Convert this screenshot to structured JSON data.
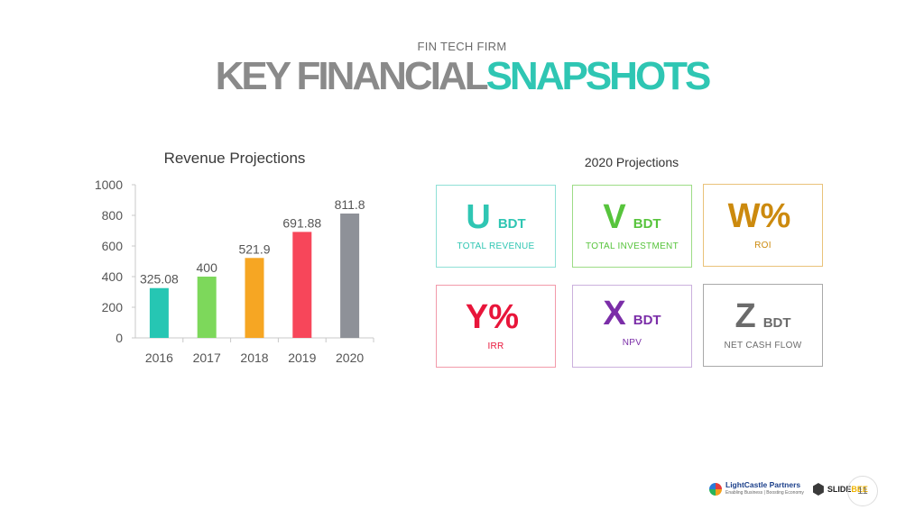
{
  "header": {
    "subtitle": "FIN TECH FIRM",
    "title_part1": "KEY FINANCIAL",
    "title_part2": "SNAPSHOTS"
  },
  "chart_data": {
    "type": "bar",
    "title": "Revenue Projections",
    "categories": [
      "2016",
      "2017",
      "2018",
      "2019",
      "2020"
    ],
    "values": [
      325.08,
      400,
      521.9,
      691.88,
      811.8
    ],
    "value_labels": [
      "325.08",
      "400",
      "521.9",
      "691.88",
      "811.8"
    ],
    "colors": [
      "#26c6b3",
      "#7dd85b",
      "#f6a623",
      "#f7465a",
      "#8e9198"
    ],
    "ylim": [
      0,
      1000
    ],
    "yticks": [
      0,
      200,
      400,
      600,
      800,
      1000
    ],
    "xlabel": "",
    "ylabel": "",
    "grid": false
  },
  "projections": {
    "title": "2020 Projections",
    "cards": [
      {
        "letter": "U",
        "unit": "BDT",
        "label": "TOTAL REVENUE",
        "color": "#2fc6b3",
        "border": "#8fe0d6"
      },
      {
        "letter": "V",
        "unit": "BDT",
        "label": "TOTAL INVESTMENT",
        "color": "#57c43c",
        "border": "#9ddc86"
      },
      {
        "letter": "W%",
        "unit": "",
        "label": "ROI",
        "color": "#cc8a0e",
        "border": "#e9c27a"
      },
      {
        "letter": "Y%",
        "unit": "",
        "label": "IRR",
        "color": "#e8153a",
        "border": "#f29aaa"
      },
      {
        "letter": "X",
        "unit": "BDT",
        "label": "NPV",
        "color": "#7b2ea8",
        "border": "#cbb0dd"
      },
      {
        "letter": "Z",
        "unit": "BDT",
        "label": "NET CASH FLOW",
        "color": "#6b6b6b",
        "border": "#a9a9a9"
      }
    ]
  },
  "footer": {
    "logo1_name": "LightCastle Partners",
    "logo1_tagline": "Enabling Business | Boosting Economy",
    "logo2_name_a": "SLIDE",
    "logo2_name_b": "BEE",
    "page_number": "11"
  }
}
